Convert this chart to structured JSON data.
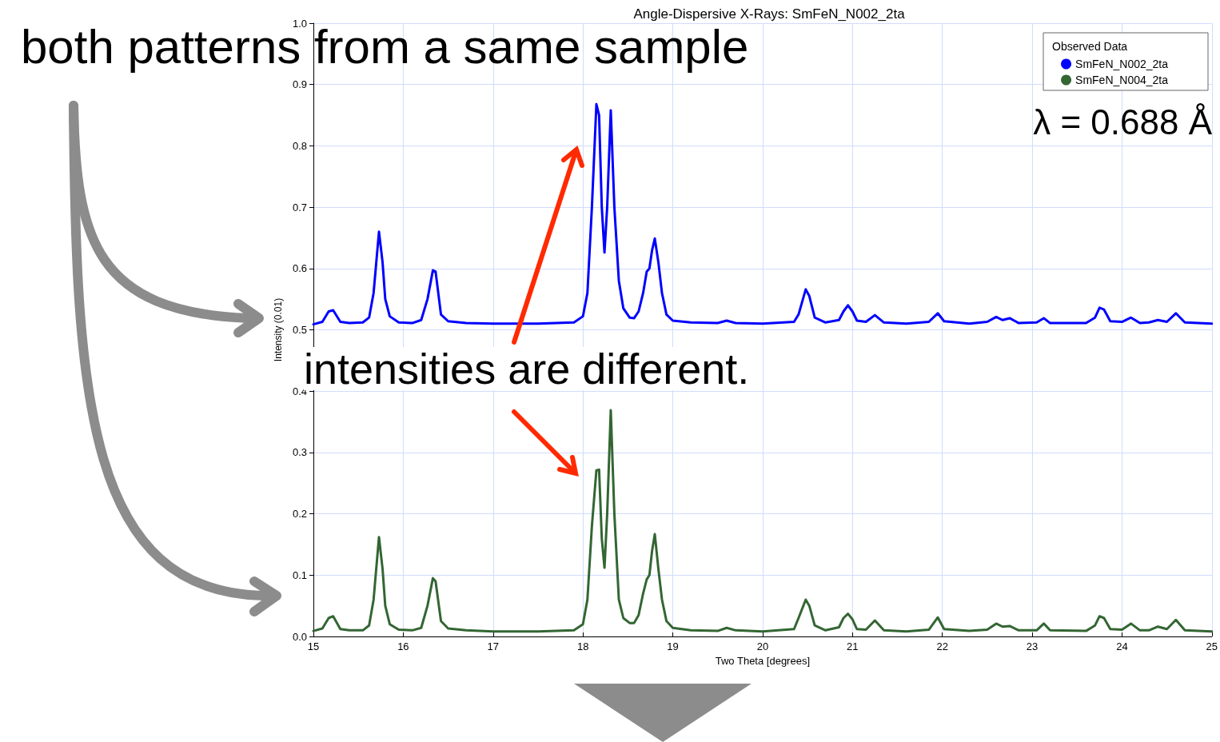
{
  "chart_data": {
    "type": "line",
    "title": "Angle-Dispersive X-Rays: SmFeN_N002_2ta",
    "xlabel": "Two Theta [degrees]",
    "ylabel": "Intensity (0.01)",
    "legend_title": "Observed Data",
    "annotations": [
      "both patterns from a same sample",
      "intensities are different.",
      "λ = 0.688 Å"
    ],
    "x": [
      15.0,
      15.1,
      15.17,
      15.22,
      15.3,
      15.4,
      15.55,
      15.62,
      15.67,
      15.73,
      15.77,
      15.8,
      15.85,
      15.95,
      16.1,
      16.2,
      16.27,
      16.33,
      16.36,
      16.42,
      16.5,
      16.7,
      17.0,
      17.5,
      17.9,
      18.0,
      18.05,
      18.1,
      18.15,
      18.18,
      18.21,
      18.24,
      18.27,
      18.31,
      18.35,
      18.4,
      18.45,
      18.52,
      18.57,
      18.62,
      18.67,
      18.71,
      18.74,
      18.77,
      18.8,
      18.84,
      18.88,
      18.93,
      19.0,
      19.2,
      19.5,
      19.6,
      19.7,
      20.0,
      20.35,
      20.4,
      20.48,
      20.52,
      20.58,
      20.7,
      20.85,
      20.9,
      20.95,
      21.0,
      21.05,
      21.15,
      21.25,
      21.35,
      21.6,
      21.85,
      21.95,
      22.02,
      22.3,
      22.5,
      22.6,
      22.67,
      22.75,
      22.85,
      23.05,
      23.13,
      23.2,
      23.6,
      23.7,
      23.75,
      23.8,
      23.87,
      24.0,
      24.1,
      24.2,
      24.3,
      24.4,
      24.5,
      24.6,
      24.7,
      25.0
    ],
    "series": [
      {
        "name": "SmFeN_N002_2ta",
        "color": "#0000ff",
        "values": [
          0.509,
          0.513,
          0.53,
          0.532,
          0.513,
          0.511,
          0.512,
          0.52,
          0.56,
          0.66,
          0.61,
          0.55,
          0.522,
          0.512,
          0.511,
          0.516,
          0.55,
          0.597,
          0.595,
          0.525,
          0.514,
          0.511,
          0.51,
          0.51,
          0.512,
          0.522,
          0.56,
          0.7,
          0.868,
          0.85,
          0.7,
          0.626,
          0.7,
          0.858,
          0.7,
          0.58,
          0.535,
          0.52,
          0.519,
          0.53,
          0.56,
          0.595,
          0.6,
          0.63,
          0.649,
          0.61,
          0.56,
          0.525,
          0.515,
          0.512,
          0.511,
          0.515,
          0.511,
          0.51,
          0.513,
          0.525,
          0.566,
          0.555,
          0.52,
          0.512,
          0.516,
          0.53,
          0.54,
          0.53,
          0.515,
          0.513,
          0.524,
          0.512,
          0.51,
          0.513,
          0.527,
          0.514,
          0.51,
          0.513,
          0.521,
          0.516,
          0.519,
          0.511,
          0.512,
          0.519,
          0.511,
          0.511,
          0.52,
          0.536,
          0.533,
          0.514,
          0.513,
          0.52,
          0.511,
          0.512,
          0.516,
          0.513,
          0.527,
          0.512,
          0.51
        ]
      },
      {
        "name": "SmFeN_N004_2ta",
        "color": "#336633",
        "values": [
          0.009,
          0.013,
          0.03,
          0.033,
          0.012,
          0.01,
          0.01,
          0.018,
          0.06,
          0.162,
          0.11,
          0.05,
          0.02,
          0.011,
          0.01,
          0.014,
          0.05,
          0.095,
          0.09,
          0.025,
          0.013,
          0.01,
          0.008,
          0.008,
          0.01,
          0.02,
          0.06,
          0.18,
          0.271,
          0.272,
          0.16,
          0.112,
          0.2,
          0.369,
          0.2,
          0.06,
          0.03,
          0.022,
          0.022,
          0.035,
          0.07,
          0.093,
          0.1,
          0.14,
          0.167,
          0.11,
          0.06,
          0.025,
          0.014,
          0.01,
          0.009,
          0.014,
          0.01,
          0.008,
          0.012,
          0.03,
          0.06,
          0.05,
          0.018,
          0.01,
          0.015,
          0.03,
          0.037,
          0.028,
          0.012,
          0.011,
          0.026,
          0.01,
          0.008,
          0.011,
          0.031,
          0.012,
          0.009,
          0.011,
          0.021,
          0.016,
          0.017,
          0.01,
          0.01,
          0.021,
          0.01,
          0.009,
          0.018,
          0.033,
          0.03,
          0.012,
          0.011,
          0.021,
          0.01,
          0.01,
          0.016,
          0.012,
          0.027,
          0.01,
          0.008
        ]
      }
    ],
    "xlim": [
      15,
      25
    ],
    "xticks": [
      15,
      16,
      17,
      18,
      19,
      20,
      21,
      22,
      23,
      24,
      25
    ],
    "ylim": [
      0,
      1
    ],
    "yticks": [
      {
        "value": 0,
        "label": "0.0"
      },
      {
        "value": 0.1,
        "label": "0.1"
      },
      {
        "value": 0.2,
        "label": "0.2"
      },
      {
        "value": 0.3,
        "label": "0.3"
      },
      {
        "value": 0.4,
        "label": "0.4"
      },
      {
        "value": 0.5,
        "label": "0.5"
      },
      {
        "value": 0.6,
        "label": "0.6"
      },
      {
        "value": 0.7,
        "label": "0.7"
      },
      {
        "value": 0.8,
        "label": "0.8"
      },
      {
        "value": 0.9,
        "label": "0.9"
      },
      {
        "value": 1,
        "label": "1.0"
      }
    ],
    "grid": true,
    "legend": "top right",
    "marker": "none",
    "line_style": "solid"
  }
}
